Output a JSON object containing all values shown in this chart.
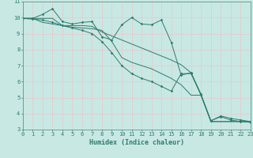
{
  "title": "",
  "xlabel": "Humidex (Indice chaleur)",
  "ylabel": "",
  "bg_color": "#c8e8e4",
  "grid_color": "#e8c8c8",
  "line_color": "#2d7d6e",
  "x_min": 0,
  "x_max": 23,
  "y_min": 3,
  "y_max": 11,
  "series": [
    [
      9.95,
      9.95,
      10.2,
      10.55,
      9.75,
      9.6,
      9.7,
      9.75,
      8.8,
      8.6,
      9.55,
      10.0,
      9.6,
      9.55,
      9.85,
      8.45,
      6.4,
      6.55,
      5.2,
      3.55,
      3.85,
      3.7,
      3.6,
      3.5
    ],
    [
      9.95,
      9.95,
      9.95,
      9.95,
      9.5,
      9.5,
      9.5,
      9.45,
      9.1,
      8.85,
      8.6,
      8.35,
      8.1,
      7.85,
      7.6,
      7.35,
      7.05,
      6.55,
      5.2,
      3.5,
      3.5,
      3.5,
      3.5,
      3.5
    ],
    [
      9.95,
      9.95,
      9.7,
      9.6,
      9.5,
      9.4,
      9.35,
      9.3,
      9.2,
      8.5,
      7.5,
      7.2,
      7.0,
      6.8,
      6.5,
      6.2,
      5.8,
      5.15,
      5.15,
      3.5,
      3.5,
      3.5,
      3.5,
      3.5
    ],
    [
      9.95,
      9.9,
      9.85,
      9.7,
      9.5,
      9.35,
      9.2,
      9.0,
      8.5,
      7.8,
      7.0,
      6.5,
      6.2,
      6.0,
      5.7,
      5.4,
      6.5,
      6.5,
      5.15,
      3.55,
      3.8,
      3.6,
      3.5,
      3.45
    ]
  ],
  "marker_series": [
    0,
    3
  ],
  "marker": "D",
  "marker_size": 1.8,
  "font_size_label": 6,
  "font_size_tick": 5
}
